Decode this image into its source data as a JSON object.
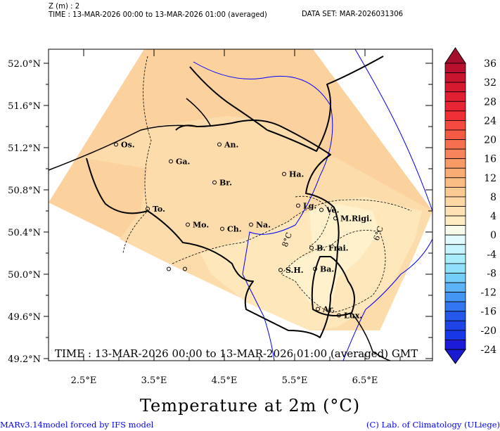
{
  "header": {
    "z_line": "Z (m) : 2",
    "time_line": "TIME : 13-MAR-2026 00:00 to 13-MAR-2026 01:00 (averaged)",
    "dataset": "DATA SET: MAR-2026031306"
  },
  "map": {
    "lon_ticks": [
      "2.5°E",
      "3.5°E",
      "4.5°E",
      "5.5°E",
      "6.5°E"
    ],
    "lon_values": [
      2.5,
      3.5,
      4.5,
      5.5,
      6.5
    ],
    "lat_ticks": [
      "52.0°N",
      "51.6°N",
      "51.2°N",
      "50.8°N",
      "50.4°N",
      "50.0°N",
      "49.6°N",
      "49.2°N"
    ],
    "lat_values": [
      52.0,
      51.6,
      51.2,
      50.8,
      50.4,
      50.0,
      49.6,
      49.2
    ],
    "lon_range": [
      2.0,
      7.46
    ],
    "lat_range": [
      49.2,
      52.13
    ],
    "contour_labels": [
      "8°C",
      "6°C"
    ],
    "time_box": "TIME : 13-MAR-2026 00:00 to 13-MAR-2026 01:00 (averaged) GMT",
    "fill_colors": {
      "t12_14": "#fbd19d",
      "t10_12": "#fddcab",
      "t8_10": "#fde7bb",
      "t6_8": "#fef1cb"
    },
    "border_color": "#000000",
    "river_color": "#0000ff",
    "cities": [
      {
        "label": "Os.",
        "lon": 2.96,
        "lat": 51.23
      },
      {
        "label": "An.",
        "lon": 4.43,
        "lat": 51.23
      },
      {
        "label": "Ga.",
        "lon": 3.74,
        "lat": 51.07
      },
      {
        "label": "Br.",
        "lon": 4.36,
        "lat": 50.87
      },
      {
        "label": "Ha.",
        "lon": 5.35,
        "lat": 50.95
      },
      {
        "label": "Lg.",
        "lon": 5.55,
        "lat": 50.65
      },
      {
        "label": "Ve.",
        "lon": 5.88,
        "lat": 50.61
      },
      {
        "label": "M.Rigi.",
        "lon": 6.08,
        "lat": 50.53
      },
      {
        "label": "To.",
        "lon": 3.41,
        "lat": 50.62
      },
      {
        "label": "Mo.",
        "lon": 3.98,
        "lat": 50.47
      },
      {
        "label": "Ch.",
        "lon": 4.47,
        "lat": 50.43
      },
      {
        "label": "Na.",
        "lon": 4.88,
        "lat": 50.47
      },
      {
        "label": "B. Frai.",
        "lon": 5.74,
        "lat": 50.25
      },
      {
        "label": "S.H.",
        "lon": 5.3,
        "lat": 50.04
      },
      {
        "label": "Ba.",
        "lon": 5.79,
        "lat": 50.05
      },
      {
        "label": "Ar.",
        "lon": 5.83,
        "lat": 49.67
      },
      {
        "label": "Lux.",
        "lon": 6.13,
        "lat": 49.61
      },
      {
        "label": "",
        "lon": 3.71,
        "lat": 50.05
      },
      {
        "label": "",
        "lon": 3.94,
        "lat": 50.05
      }
    ]
  },
  "colorbar": {
    "ticks": [
      "36",
      "32",
      "28",
      "24",
      "20",
      "16",
      "12",
      "8",
      "4",
      "0",
      "-4",
      "-8",
      "-12",
      "-16",
      "-20",
      "-24"
    ],
    "top_triangle": "#a50f2d",
    "bottom_triangle": "#1a1ad0",
    "colors": [
      "#b8102e",
      "#c8142f",
      "#d51a30",
      "#e01f33",
      "#e82535",
      "#f03036",
      "#f44a40",
      "#f55a45",
      "#f6704f",
      "#f7845a",
      "#f89a66",
      "#f9ad74",
      "#fabd84",
      "#fccb94",
      "#fdd7a4",
      "#fde2b3",
      "#feecc2",
      "#f8fbe9",
      "#e0fafe",
      "#c6f4fd",
      "#a9ecfc",
      "#8ee0fb",
      "#74cefa",
      "#5ab4f7",
      "#4496f4",
      "#3277f0",
      "#2458ec",
      "#1e44e8",
      "#1838e6",
      "#1c1cd8"
    ]
  },
  "title": "Temperature at 2m (°C)",
  "footer": {
    "left": "MARv3.14model forced by IFS model",
    "right": "(C) Lab. of Climatology (ULiege)"
  }
}
